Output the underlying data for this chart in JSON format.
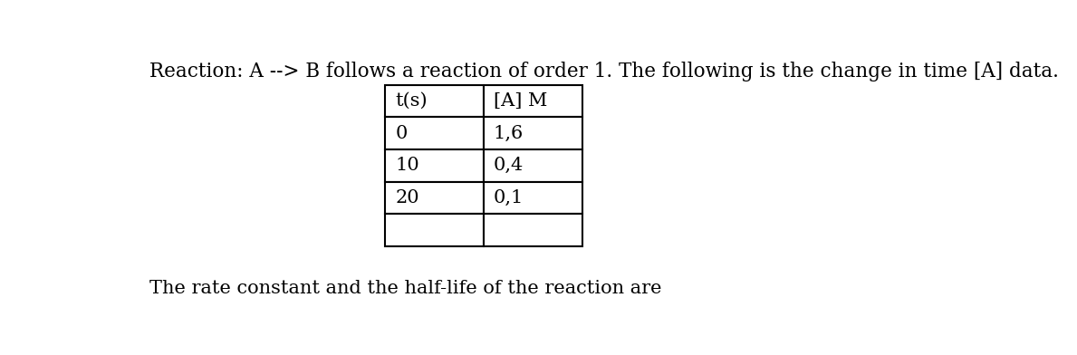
{
  "title_text": "Reaction: A --> B follows a reaction of order 1. The following is the change in time [A] data.",
  "footer_text": "The rate constant and the half-life of the reaction are",
  "table_headers": [
    "t(s)",
    "[A] M"
  ],
  "table_rows": [
    [
      "0",
      "1,6"
    ],
    [
      "10",
      "0,4"
    ],
    [
      "20",
      "0,1"
    ],
    [
      "",
      ""
    ]
  ],
  "background_color": "#ffffff",
  "text_color": "#000000",
  "title_fontsize": 15.5,
  "table_fontsize": 15,
  "footer_fontsize": 15,
  "fig_width": 11.89,
  "fig_height": 3.92
}
